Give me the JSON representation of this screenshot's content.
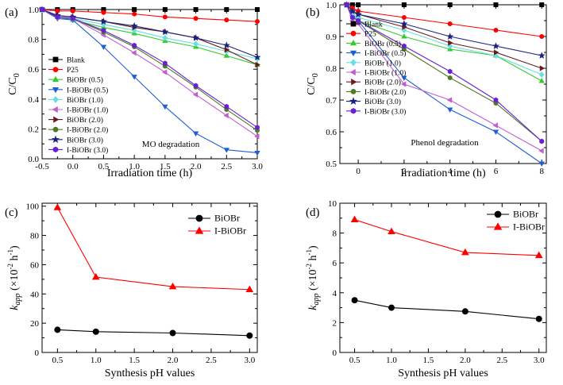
{
  "chart_data": [
    {
      "panel": "(a)",
      "type": "line",
      "xlabel": "Irradiation time (h)",
      "ylabel": "C/C0",
      "annotation": "MO degradation",
      "xlim": [
        -0.5,
        3.0
      ],
      "ylim": [
        0.0,
        1.0
      ],
      "xticks": [
        "-0.5",
        "0.0",
        "0.5",
        "1.0",
        "1.5",
        "2.0",
        "2.5",
        "3.0"
      ],
      "yticks": [
        "0.0",
        "0.2",
        "0.4",
        "0.6",
        "0.8",
        "1.0"
      ],
      "x": [
        -0.5,
        -0.25,
        0.0,
        0.5,
        1.0,
        1.5,
        2.0,
        2.5,
        3.0
      ],
      "series": [
        {
          "name": "Blank",
          "color": "#000000",
          "marker": "square",
          "values": [
            1.0,
            1.0,
            1.0,
            1.0,
            1.0,
            1.0,
            1.0,
            1.0,
            1.0
          ]
        },
        {
          "name": "P25",
          "color": "#ff0000",
          "marker": "circle",
          "values": [
            1.0,
            0.99,
            0.99,
            0.98,
            0.97,
            0.95,
            0.94,
            0.93,
            0.92
          ]
        },
        {
          "name": "BiOBr (0.5)",
          "color": "#33cc33",
          "marker": "triangle-up",
          "values": [
            1.0,
            0.95,
            0.93,
            0.88,
            0.84,
            0.79,
            0.75,
            0.69,
            0.63
          ]
        },
        {
          "name": "I-BiOBr (0.5)",
          "color": "#1f5fd6",
          "marker": "triangle-down",
          "values": [
            1.0,
            0.94,
            0.93,
            0.75,
            0.55,
            0.35,
            0.17,
            0.06,
            0.04
          ]
        },
        {
          "name": "BiOBr (1.0)",
          "color": "#66e0e0",
          "marker": "diamond",
          "values": [
            1.0,
            0.95,
            0.94,
            0.9,
            0.86,
            0.81,
            0.77,
            0.72,
            0.67
          ]
        },
        {
          "name": "I-BiOBr (1.0)",
          "color": "#c060d0",
          "marker": "triangle-left",
          "values": [
            1.0,
            0.95,
            0.94,
            0.83,
            0.71,
            0.58,
            0.43,
            0.29,
            0.15
          ]
        },
        {
          "name": "BiOBr (2.0)",
          "color": "#6b1a1a",
          "marker": "triangle-right",
          "values": [
            1.0,
            0.96,
            0.95,
            0.92,
            0.88,
            0.85,
            0.81,
            0.73,
            0.63
          ]
        },
        {
          "name": "I-BiOBr (2.0)",
          "color": "#4e7a26",
          "marker": "circle",
          "values": [
            1.0,
            0.95,
            0.94,
            0.85,
            0.75,
            0.62,
            0.48,
            0.33,
            0.19
          ]
        },
        {
          "name": "BiOBr (3.0)",
          "color": "#1a237e",
          "marker": "star",
          "values": [
            1.0,
            0.96,
            0.95,
            0.92,
            0.89,
            0.85,
            0.81,
            0.76,
            0.68
          ]
        },
        {
          "name": "I-BiOBr (3.0)",
          "color": "#6a1fd6",
          "marker": "hexagon",
          "values": [
            1.0,
            0.95,
            0.94,
            0.86,
            0.76,
            0.64,
            0.49,
            0.35,
            0.21
          ]
        }
      ]
    },
    {
      "panel": "(b)",
      "type": "line",
      "xlabel": "Irradiation time (h)",
      "ylabel": "C/C0",
      "annotation": "Phenol degradation",
      "xlim": [
        -0.8,
        8.2
      ],
      "ylim": [
        0.5,
        1.0
      ],
      "xticks": [
        "0",
        "2",
        "4",
        "6",
        "8"
      ],
      "xtick_values": [
        0,
        2,
        4,
        6,
        8
      ],
      "yticks": [
        "0.5",
        "0.6",
        "0.7",
        "0.8",
        "0.9",
        "1.0"
      ],
      "x": [
        -0.5,
        -0.25,
        0.0,
        2.0,
        4.0,
        6.0,
        8.0
      ],
      "series": [
        {
          "name": "Blank",
          "color": "#000000",
          "marker": "square",
          "values": [
            1.0,
            1.0,
            1.0,
            1.0,
            1.0,
            1.0,
            1.0
          ]
        },
        {
          "name": "P25",
          "color": "#ff0000",
          "marker": "circle",
          "values": [
            1.0,
            0.99,
            0.98,
            0.96,
            0.94,
            0.92,
            0.9
          ]
        },
        {
          "name": "BiOBr (0.5)",
          "color": "#33cc33",
          "marker": "triangle-up",
          "values": [
            1.0,
            0.97,
            0.95,
            0.9,
            0.86,
            0.84,
            0.76
          ]
        },
        {
          "name": "I-BiOBr (0.5)",
          "color": "#1f5fd6",
          "marker": "triangle-down",
          "values": [
            1.0,
            0.96,
            0.95,
            0.77,
            0.67,
            0.6,
            0.5
          ]
        },
        {
          "name": "BiOBr (1.0)",
          "color": "#66e0e0",
          "marker": "diamond",
          "values": [
            1.0,
            0.97,
            0.96,
            0.92,
            0.87,
            0.84,
            0.78
          ]
        },
        {
          "name": "I-BiOBr (1.0)",
          "color": "#c060d0",
          "marker": "triangle-left",
          "values": [
            1.0,
            0.95,
            0.94,
            0.75,
            0.7,
            0.62,
            0.54
          ]
        },
        {
          "name": "BiOBr (2.0)",
          "color": "#6b1a1a",
          "marker": "triangle-right",
          "values": [
            1.0,
            0.98,
            0.97,
            0.93,
            0.88,
            0.85,
            0.8
          ]
        },
        {
          "name": "I-BiOBr (2.0)",
          "color": "#4e7a26",
          "marker": "circle",
          "values": [
            1.0,
            0.96,
            0.95,
            0.86,
            0.77,
            0.69,
            0.57
          ]
        },
        {
          "name": "BiOBr (3.0)",
          "color": "#1a237e",
          "marker": "star",
          "values": [
            1.0,
            0.98,
            0.97,
            0.94,
            0.9,
            0.87,
            0.84
          ]
        },
        {
          "name": "I-BiOBr (3.0)",
          "color": "#6a1fd6",
          "marker": "hexagon",
          "values": [
            1.0,
            0.96,
            0.95,
            0.87,
            0.79,
            0.7,
            0.57
          ]
        }
      ]
    },
    {
      "panel": "(c)",
      "type": "line",
      "xlabel": "Synthesis pH values",
      "ylabel_main": "k",
      "ylabel_sub": "app",
      "ylabel_rest": "(×10",
      "ylabel_exp": "-2",
      "ylabel_unit": " h",
      "ylabel_unit_exp": "-1",
      "ylabel_close": ")",
      "xlim": [
        0.3,
        3.1
      ],
      "ylim": [
        0,
        102
      ],
      "xticks": [
        "0.5",
        "1.0",
        "1.5",
        "2.0",
        "2.5",
        "3.0"
      ],
      "yticks": [
        "0",
        "20",
        "40",
        "60",
        "80",
        "100"
      ],
      "x": [
        0.5,
        1.0,
        2.0,
        3.0
      ],
      "series": [
        {
          "name": "BiOBr",
          "color": "#000000",
          "marker": "circle",
          "values": [
            15.5,
            14.2,
            13.3,
            11.5
          ]
        },
        {
          "name": "I-BiOBr",
          "color": "#ff0000",
          "marker": "triangle-up",
          "values": [
            99,
            51.5,
            45,
            43
          ]
        }
      ]
    },
    {
      "panel": "(d)",
      "type": "line",
      "xlabel": "Synthesis pH values",
      "ylabel_main": "k",
      "ylabel_sub": "app",
      "ylabel_rest": "(×10",
      "ylabel_exp": "-2",
      "ylabel_unit": " h",
      "ylabel_unit_exp": "-1",
      "ylabel_close": ")",
      "xlim": [
        0.3,
        3.1
      ],
      "ylim": [
        0,
        10
      ],
      "xticks": [
        "0.5",
        "1.0",
        "1.5",
        "2.0",
        "2.5",
        "3.0"
      ],
      "yticks": [
        "0",
        "2",
        "4",
        "6",
        "8",
        "10"
      ],
      "x": [
        0.5,
        1.0,
        2.0,
        3.0
      ],
      "series": [
        {
          "name": "BiOBr",
          "color": "#000000",
          "marker": "circle",
          "values": [
            3.5,
            3.0,
            2.75,
            2.25
          ]
        },
        {
          "name": "I-BiOBr",
          "color": "#ff0000",
          "marker": "triangle-up",
          "values": [
            8.9,
            8.1,
            6.7,
            6.5
          ]
        }
      ]
    }
  ]
}
